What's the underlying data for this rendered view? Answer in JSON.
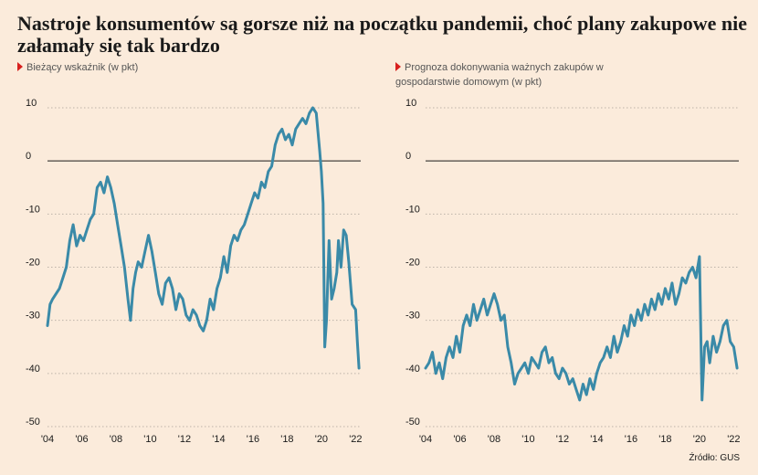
{
  "title": "Nastroje konsumentów są gorsze niż na początku pandemii, choć plany zakupowe nie załamały się tak bardzo",
  "source": "Źródło: GUS",
  "colors": {
    "line": "#3a8aa8",
    "marker": "#d8201e",
    "background": "#fbebdb",
    "grid": "#bdb3a9"
  },
  "chart_data": [
    {
      "type": "line",
      "title": "Bieżący wskaźnik (w pkt)",
      "ylim": [
        -50,
        10
      ],
      "yticks": [
        10,
        0,
        -10,
        -20,
        -30,
        -40,
        -50
      ],
      "xlim": [
        2004,
        2022.3
      ],
      "xticks": [
        2004,
        2006,
        2008,
        2010,
        2012,
        2014,
        2016,
        2018,
        2020,
        2022
      ],
      "xtick_labels": [
        "'04",
        "'06",
        "'08",
        "'10",
        "'12",
        "'14",
        "'16",
        "'18",
        "'20",
        "'22"
      ],
      "grid": true,
      "series": [
        {
          "x": [
            2004.0,
            2004.15,
            2004.3,
            2004.5,
            2004.7,
            2004.9,
            2005.1,
            2005.3,
            2005.5,
            2005.7,
            2005.9,
            2006.1,
            2006.3,
            2006.5,
            2006.7,
            2006.9,
            2007.1,
            2007.3,
            2007.5,
            2007.7,
            2007.9,
            2008.1,
            2008.3,
            2008.5,
            2008.7,
            2008.85,
            2009.0,
            2009.15,
            2009.3,
            2009.5,
            2009.7,
            2009.9,
            2010.1,
            2010.3,
            2010.5,
            2010.7,
            2010.9,
            2011.1,
            2011.3,
            2011.5,
            2011.7,
            2011.9,
            2012.1,
            2012.3,
            2012.5,
            2012.7,
            2012.9,
            2013.1,
            2013.3,
            2013.5,
            2013.7,
            2013.9,
            2014.1,
            2014.3,
            2014.5,
            2014.7,
            2014.9,
            2015.1,
            2015.3,
            2015.5,
            2015.7,
            2015.9,
            2016.1,
            2016.3,
            2016.5,
            2016.7,
            2016.9,
            2017.1,
            2017.3,
            2017.5,
            2017.7,
            2017.9,
            2018.1,
            2018.3,
            2018.5,
            2018.7,
            2018.9,
            2019.1,
            2019.3,
            2019.5,
            2019.7,
            2019.9,
            2020.0,
            2020.1,
            2020.2,
            2020.3,
            2020.45,
            2020.6,
            2020.75,
            2020.9,
            2021.0,
            2021.15,
            2021.3,
            2021.45,
            2021.6,
            2021.8,
            2022.0,
            2022.1,
            2022.2
          ],
          "values": [
            -31,
            -27,
            -26,
            -25,
            -24,
            -22,
            -20,
            -15,
            -12,
            -16,
            -14,
            -15,
            -13,
            -11,
            -10,
            -5,
            -4,
            -6,
            -3,
            -5,
            -8,
            -12,
            -16,
            -20,
            -26,
            -30,
            -24,
            -21,
            -19,
            -20,
            -17,
            -14,
            -17,
            -21,
            -25,
            -27,
            -23,
            -22,
            -24,
            -28,
            -25,
            -26,
            -29,
            -30,
            -28,
            -29,
            -31,
            -32,
            -30,
            -26,
            -28,
            -24,
            -22,
            -18,
            -21,
            -16,
            -14,
            -15,
            -13,
            -12,
            -10,
            -8,
            -6,
            -7,
            -4,
            -5,
            -2,
            -1,
            3,
            5,
            6,
            4,
            5,
            3,
            6,
            7,
            8,
            7,
            9,
            10,
            9,
            2,
            -2,
            -8,
            -35,
            -30,
            -15,
            -26,
            -24,
            -21,
            -15,
            -20,
            -13,
            -14,
            -19,
            -27,
            -28,
            -34,
            -39
          ]
        }
      ]
    },
    {
      "type": "line",
      "title": "Prognoza dokonywania ważnych zakupów w gospodarstwie domowym (w pkt)",
      "ylim": [
        -50,
        10
      ],
      "yticks": [
        10,
        0,
        -10,
        -20,
        -30,
        -40,
        -50
      ],
      "xlim": [
        2004,
        2022.3
      ],
      "xticks": [
        2004,
        2006,
        2008,
        2010,
        2012,
        2014,
        2016,
        2018,
        2020,
        2022
      ],
      "xtick_labels": [
        "'04",
        "'06",
        "'08",
        "'10",
        "'12",
        "'14",
        "'16",
        "'18",
        "'20",
        "'22"
      ],
      "grid": true,
      "series": [
        {
          "x": [
            2004.0,
            2004.2,
            2004.4,
            2004.6,
            2004.8,
            2005.0,
            2005.2,
            2005.4,
            2005.6,
            2005.8,
            2006.0,
            2006.2,
            2006.4,
            2006.6,
            2006.8,
            2007.0,
            2007.2,
            2007.4,
            2007.6,
            2007.8,
            2008.0,
            2008.2,
            2008.4,
            2008.6,
            2008.8,
            2009.0,
            2009.2,
            2009.4,
            2009.6,
            2009.8,
            2010.0,
            2010.2,
            2010.4,
            2010.6,
            2010.8,
            2011.0,
            2011.2,
            2011.4,
            2011.6,
            2011.8,
            2012.0,
            2012.2,
            2012.4,
            2012.6,
            2012.8,
            2013.0,
            2013.2,
            2013.4,
            2013.6,
            2013.8,
            2014.0,
            2014.2,
            2014.4,
            2014.6,
            2014.8,
            2015.0,
            2015.2,
            2015.4,
            2015.6,
            2015.8,
            2016.0,
            2016.2,
            2016.4,
            2016.6,
            2016.8,
            2017.0,
            2017.2,
            2017.4,
            2017.6,
            2017.8,
            2018.0,
            2018.2,
            2018.4,
            2018.6,
            2018.8,
            2019.0,
            2019.2,
            2019.4,
            2019.6,
            2019.8,
            2020.0,
            2020.15,
            2020.3,
            2020.45,
            2020.6,
            2020.8,
            2021.0,
            2021.2,
            2021.4,
            2021.6,
            2021.8,
            2022.0,
            2022.2
          ],
          "values": [
            -39,
            -38,
            -36,
            -40,
            -38,
            -41,
            -37,
            -35,
            -37,
            -33,
            -36,
            -31,
            -29,
            -31,
            -27,
            -30,
            -28,
            -26,
            -29,
            -27,
            -25,
            -27,
            -30,
            -29,
            -35,
            -38,
            -42,
            -40,
            -39,
            -38,
            -40,
            -37,
            -38,
            -39,
            -36,
            -35,
            -38,
            -37,
            -40,
            -41,
            -39,
            -40,
            -42,
            -41,
            -43,
            -45,
            -42,
            -44,
            -41,
            -43,
            -40,
            -38,
            -37,
            -35,
            -37,
            -33,
            -36,
            -34,
            -31,
            -33,
            -29,
            -31,
            -28,
            -30,
            -27,
            -29,
            -26,
            -28,
            -25,
            -27,
            -24,
            -26,
            -23,
            -27,
            -25,
            -22,
            -23,
            -21,
            -20,
            -22,
            -18,
            -45,
            -35,
            -34,
            -38,
            -33,
            -36,
            -34,
            -31,
            -30,
            -34,
            -35,
            -39
          ]
        }
      ]
    }
  ]
}
